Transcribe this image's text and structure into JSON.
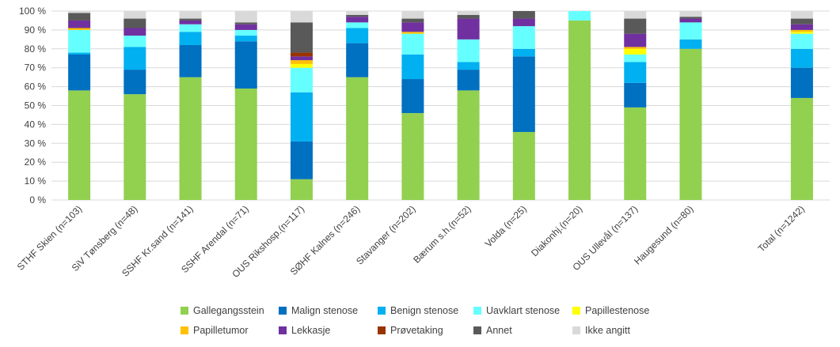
{
  "chart_data": {
    "type": "bar",
    "stacked": true,
    "percent": true,
    "categories": [
      "STHF Skien (n=103)",
      "SiV Tønsberg (n=48)",
      "SSHF Kr.sand (n=141)",
      "SSHF Arendal (n=71)",
      "OUS Rikshosp.(n=117)",
      "SØHF Kalnes (n=246)",
      "Stavanger (n=202)",
      "Bærum s.h.(n=52)",
      "Volda (n=25)",
      "Diakonhj.(n=20)",
      "OUS Ullevål (n=137)",
      "Haugesund (n=80)",
      "",
      "Total (n=1242)"
    ],
    "series": [
      {
        "name": "Gallegangsstein",
        "color": "#92d050",
        "values": [
          58,
          56,
          65,
          59,
          11,
          65,
          46,
          58,
          36,
          95,
          49,
          80,
          null,
          54
        ]
      },
      {
        "name": "Malign stenose",
        "color": "#0070c0",
        "values": [
          19,
          13,
          17,
          25,
          20,
          18,
          18,
          11,
          40,
          0,
          13,
          0,
          null,
          16
        ]
      },
      {
        "name": "Benign stenose",
        "color": "#00b0f0",
        "values": [
          1,
          12,
          7,
          3,
          26,
          8,
          13,
          4,
          4,
          0,
          11,
          5,
          null,
          10
        ]
      },
      {
        "name": "Uavklart stenose",
        "color": "#66ffff",
        "values": [
          12,
          6,
          4,
          3,
          13,
          3,
          11,
          12,
          12,
          5,
          4,
          9,
          null,
          8
        ]
      },
      {
        "name": "Papillestenose",
        "color": "#ffff00",
        "values": [
          0,
          0,
          0,
          0,
          2,
          0,
          0,
          0,
          0,
          0,
          3,
          0,
          null,
          1
        ]
      },
      {
        "name": "Papilletumor",
        "color": "#ffc000",
        "values": [
          1,
          0,
          0,
          0,
          2,
          0,
          1,
          0,
          0,
          0,
          1,
          0,
          null,
          1
        ]
      },
      {
        "name": "Lekkasje",
        "color": "#7030a0",
        "values": [
          4,
          4,
          2,
          3,
          2,
          3,
          5,
          11,
          4,
          0,
          7,
          2,
          null,
          3
        ]
      },
      {
        "name": "Prøvetaking",
        "color": "#993300",
        "values": [
          0,
          0,
          0,
          0,
          2,
          0,
          0,
          0,
          0,
          0,
          0,
          0,
          null,
          0
        ]
      },
      {
        "name": "Annet",
        "color": "#595959",
        "values": [
          4,
          5,
          1,
          1,
          16,
          1,
          2,
          2,
          4,
          0,
          8,
          1,
          null,
          3
        ]
      },
      {
        "name": "Ikke angitt",
        "color": "#d9d9d9",
        "values": [
          1,
          4,
          4,
          6,
          6,
          2,
          4,
          2,
          0,
          0,
          4,
          3,
          null,
          4
        ]
      }
    ],
    "ylim": [
      0,
      100
    ],
    "yticks": [
      "0 %",
      "10 %",
      "20 %",
      "30 %",
      "40 %",
      "50 %",
      "60 %",
      "70 %",
      "80 %",
      "90 %",
      "100 %"
    ],
    "grid": true,
    "legend_position": "bottom"
  }
}
